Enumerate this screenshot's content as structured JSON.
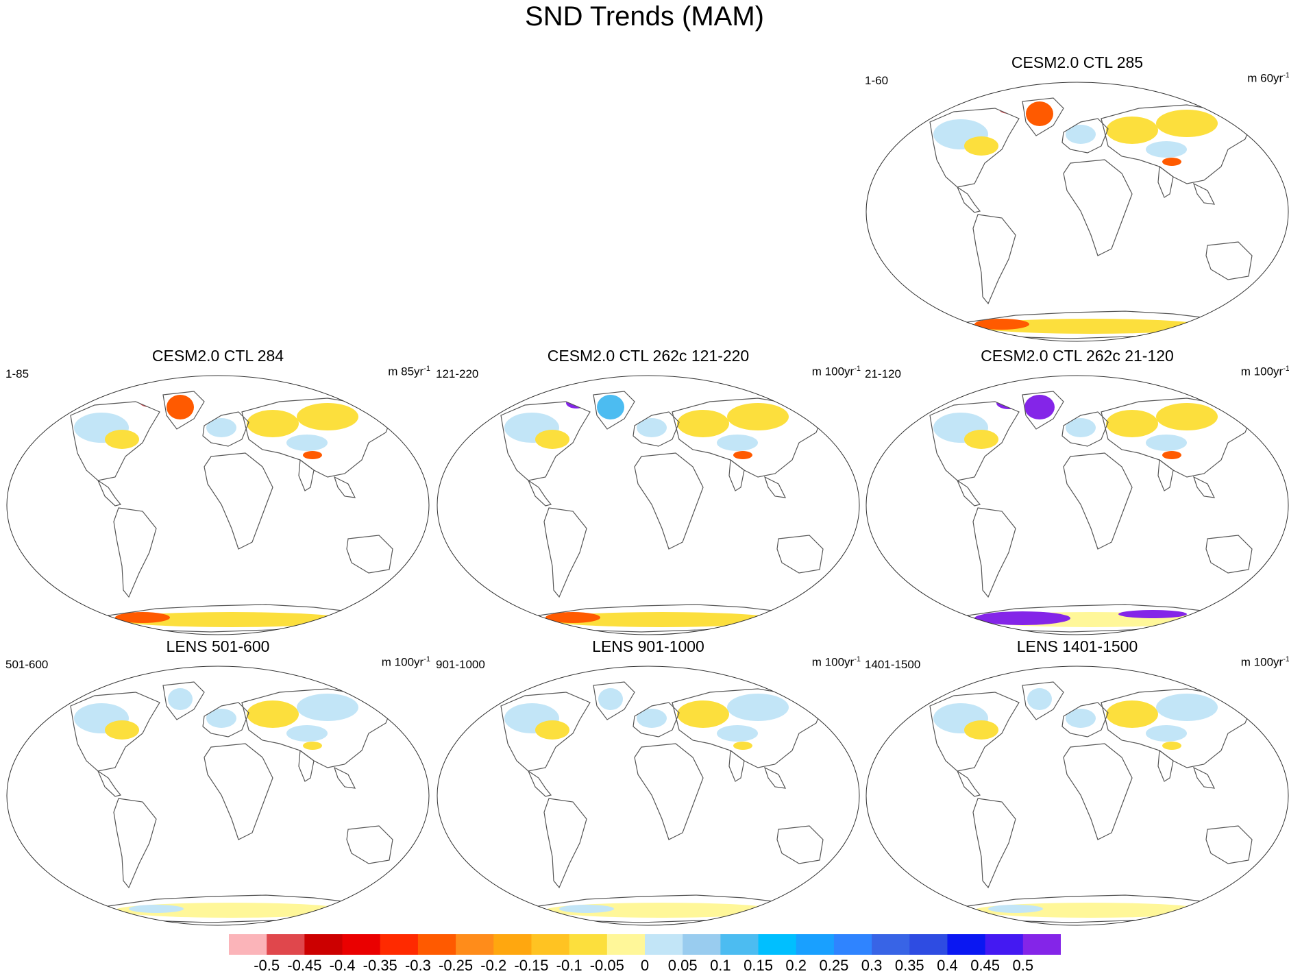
{
  "title": "SND Trends (MAM)",
  "chart_data": {
    "type": "map-panels",
    "variable": "SND",
    "season": "MAM",
    "panels": [
      {
        "id": "p285",
        "title": "CESM2.0 CTL 285",
        "years": "1-60",
        "units_prefix": "m 60yr",
        "units_exp": "-1",
        "pattern": {
          "nh": "mixed",
          "greenland": "negative",
          "antarctica": "negative"
        }
      },
      {
        "id": "p284",
        "title": "CESM2.0 CTL 284",
        "years": "1-85",
        "units_prefix": "m 85yr",
        "units_exp": "-1",
        "pattern": {
          "nh": "mixed",
          "greenland": "negative",
          "antarctica": "negative"
        }
      },
      {
        "id": "p262a",
        "title": "CESM2.0 CTL 262c 121-220",
        "years": "121-220",
        "units_prefix": "m 100yr",
        "units_exp": "-1",
        "pattern": {
          "nh": "mixed",
          "greenland": "positive",
          "antarctica": "negative"
        }
      },
      {
        "id": "p262b",
        "title": "CESM2.0 CTL 262c 21-120",
        "years": "21-120",
        "units_prefix": "m 100yr",
        "units_exp": "-1",
        "pattern": {
          "nh": "mixed",
          "greenland": "strong-positive",
          "antarctica": "strong-positive"
        }
      },
      {
        "id": "plens1",
        "title": "LENS 501-600",
        "years": "501-600",
        "units_prefix": "m 100yr",
        "units_exp": "-1",
        "pattern": {
          "nh": "weak-mixed",
          "greenland": "weak",
          "antarctica": "weak"
        }
      },
      {
        "id": "plens2",
        "title": "LENS 901-1000",
        "years": "901-1000",
        "units_prefix": "m 100yr",
        "units_exp": "-1",
        "pattern": {
          "nh": "weak-mixed",
          "greenland": "weak",
          "antarctica": "weak"
        }
      },
      {
        "id": "plens3",
        "title": "LENS 1401-1500",
        "years": "1401-1500",
        "units_prefix": "m 100yr",
        "units_exp": "-1",
        "pattern": {
          "nh": "weak-mixed",
          "greenland": "weak",
          "antarctica": "weak"
        }
      }
    ],
    "colorbar": {
      "labels": [
        "-0.5",
        "-0.45",
        "-0.4",
        "-0.35",
        "-0.3",
        "-0.25",
        "-0.2",
        "-0.15",
        "-0.1",
        "-0.05",
        "0",
        "0.05",
        "0.1",
        "0.15",
        "0.2",
        "0.25",
        "0.3",
        "0.35",
        "0.4",
        "0.45",
        "0.5"
      ],
      "colors": [
        "#fbb4b9",
        "#e0474c",
        "#cc0000",
        "#ea0000",
        "#ff2a00",
        "#ff5a00",
        "#ff8c1a",
        "#ffa70f",
        "#ffc322",
        "#fcdf3d",
        "#fff799",
        "#c2e5f7",
        "#99ccef",
        "#4cbcf1",
        "#00bfff",
        "#19a0ff",
        "#2f84ff",
        "#3864e6",
        "#2e4ce2",
        "#0a17f2",
        "#4419f2",
        "#8425e8"
      ]
    }
  },
  "colors": {
    "land_outline": "#555555",
    "globe_outline": "#333333",
    "neg_strong": "#e0474c",
    "neg_mid": "#ff5a00",
    "neg_weak": "#fcdf3d",
    "neutral": "#fff799",
    "pos_weak": "#c2e5f7",
    "pos_mid": "#4cbcf1",
    "pos_strong": "#2f84ff",
    "pos_max": "#8425e8"
  }
}
